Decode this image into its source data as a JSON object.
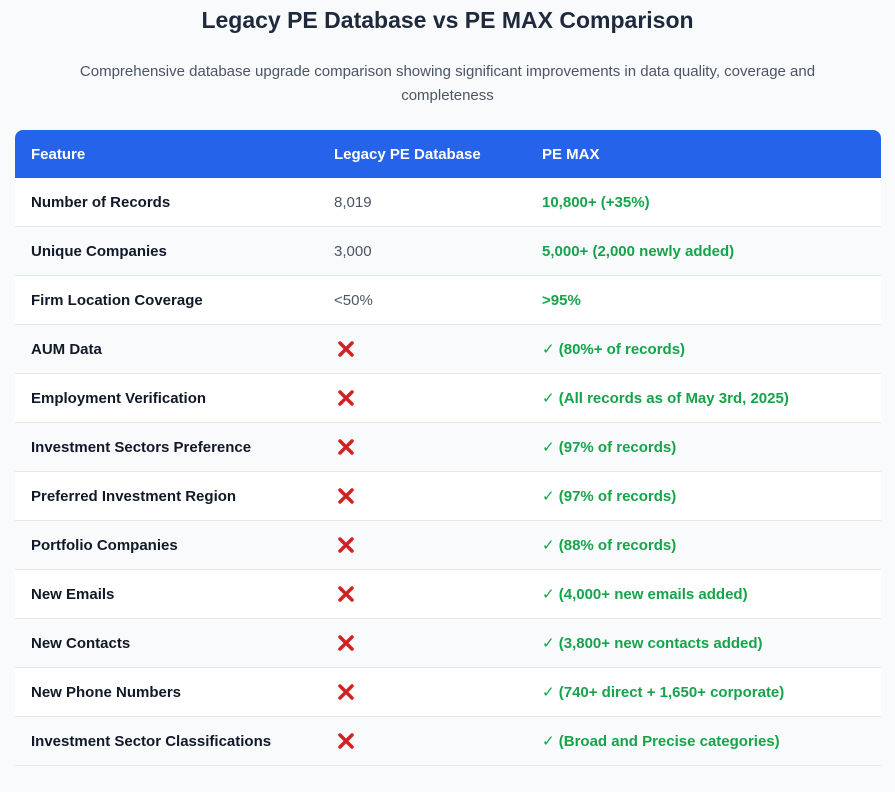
{
  "header": {
    "title": "Legacy PE Database vs PE MAX Comparison",
    "subtitle": "Comprehensive database upgrade comparison showing significant improvements in data quality, coverage and completeness"
  },
  "table": {
    "columns": [
      "Feature",
      "Legacy PE Database",
      "PE MAX"
    ],
    "rows": [
      {
        "feature": "Number of Records",
        "legacy": "8,019",
        "pemax": "10,800+ (+35%)"
      },
      {
        "feature": "Unique Companies",
        "legacy": "3,000",
        "pemax": "5,000+ (2,000 newly added)"
      },
      {
        "feature": "Firm Location Coverage",
        "legacy": "<50%",
        "pemax": ">95%"
      },
      {
        "feature": "AUM Data",
        "legacy": null,
        "pemax": "✓ (80%+ of records)"
      },
      {
        "feature": "Employment Verification",
        "legacy": null,
        "pemax": "✓ (All records as of May 3rd, 2025)"
      },
      {
        "feature": "Investment Sectors Preference",
        "legacy": null,
        "pemax": "✓ (97% of records)"
      },
      {
        "feature": "Preferred Investment Region",
        "legacy": null,
        "pemax": "✓ (97% of records)"
      },
      {
        "feature": "Portfolio Companies",
        "legacy": null,
        "pemax": "✓ (88% of records)"
      },
      {
        "feature": "New Emails",
        "legacy": null,
        "pemax": "✓ (4,000+ new emails added)"
      },
      {
        "feature": "New Contacts",
        "legacy": null,
        "pemax": "✓ (3,800+ new contacts added)"
      },
      {
        "feature": "New Phone Numbers",
        "legacy": null,
        "pemax": "✓ (740+ direct + 1,650+ corporate)"
      },
      {
        "feature": "Investment Sector Classifications",
        "legacy": null,
        "pemax": "✓ (Broad and Precise categories)"
      }
    ]
  },
  "icons": {
    "missing": "cross-mark-icon"
  },
  "colors": {
    "header_bg": "#2563eb",
    "positive": "#16a34a",
    "cross": "#dc2626"
  }
}
